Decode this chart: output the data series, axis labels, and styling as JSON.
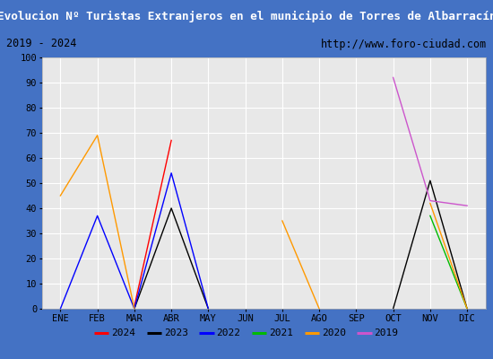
{
  "title": "Evolucion Nº Turistas Extranjeros en el municipio de Torres de Albarracín",
  "subtitle_left": "2019 - 2024",
  "subtitle_right": "http://www.foro-ciudad.com",
  "months": [
    "ENE",
    "FEB",
    "MAR",
    "ABR",
    "MAY",
    "JUN",
    "JUL",
    "AGO",
    "SEP",
    "OCT",
    "NOV",
    "DIC"
  ],
  "series": {
    "2024": {
      "color": "#ff0000",
      "data": [
        null,
        null,
        1,
        67,
        null,
        null,
        null,
        null,
        null,
        null,
        null,
        null
      ]
    },
    "2023": {
      "color": "#000000",
      "data": [
        null,
        null,
        0,
        40,
        0,
        null,
        null,
        null,
        null,
        0,
        51,
        0
      ]
    },
    "2022": {
      "color": "#0000ff",
      "data": [
        0,
        37,
        0,
        54,
        0,
        null,
        null,
        null,
        null,
        null,
        null,
        null
      ]
    },
    "2021": {
      "color": "#00bb00",
      "data": [
        null,
        null,
        null,
        null,
        null,
        null,
        null,
        null,
        null,
        null,
        37,
        0
      ]
    },
    "2020": {
      "color": "#ff9900",
      "data": [
        45,
        69,
        0,
        null,
        null,
        null,
        35,
        0,
        null,
        null,
        42,
        0
      ]
    },
    "2019": {
      "color": "#cc55cc",
      "data": [
        null,
        null,
        null,
        null,
        null,
        null,
        null,
        null,
        null,
        92,
        43,
        41
      ]
    }
  },
  "ylim": [
    0,
    100
  ],
  "yticks": [
    0,
    10,
    20,
    30,
    40,
    50,
    60,
    70,
    80,
    90,
    100
  ],
  "title_bg_color": "#4f81bd",
  "title_text_color": "#ffffff",
  "subtitle_bg_color": "#ffffff",
  "plot_bg_color": "#e8e8e8",
  "grid_color": "#ffffff",
  "legend_order": [
    "2024",
    "2023",
    "2022",
    "2021",
    "2020",
    "2019"
  ],
  "border_color": "#4472c4",
  "fig_width": 5.5,
  "fig_height": 4.0,
  "fig_dpi": 100
}
